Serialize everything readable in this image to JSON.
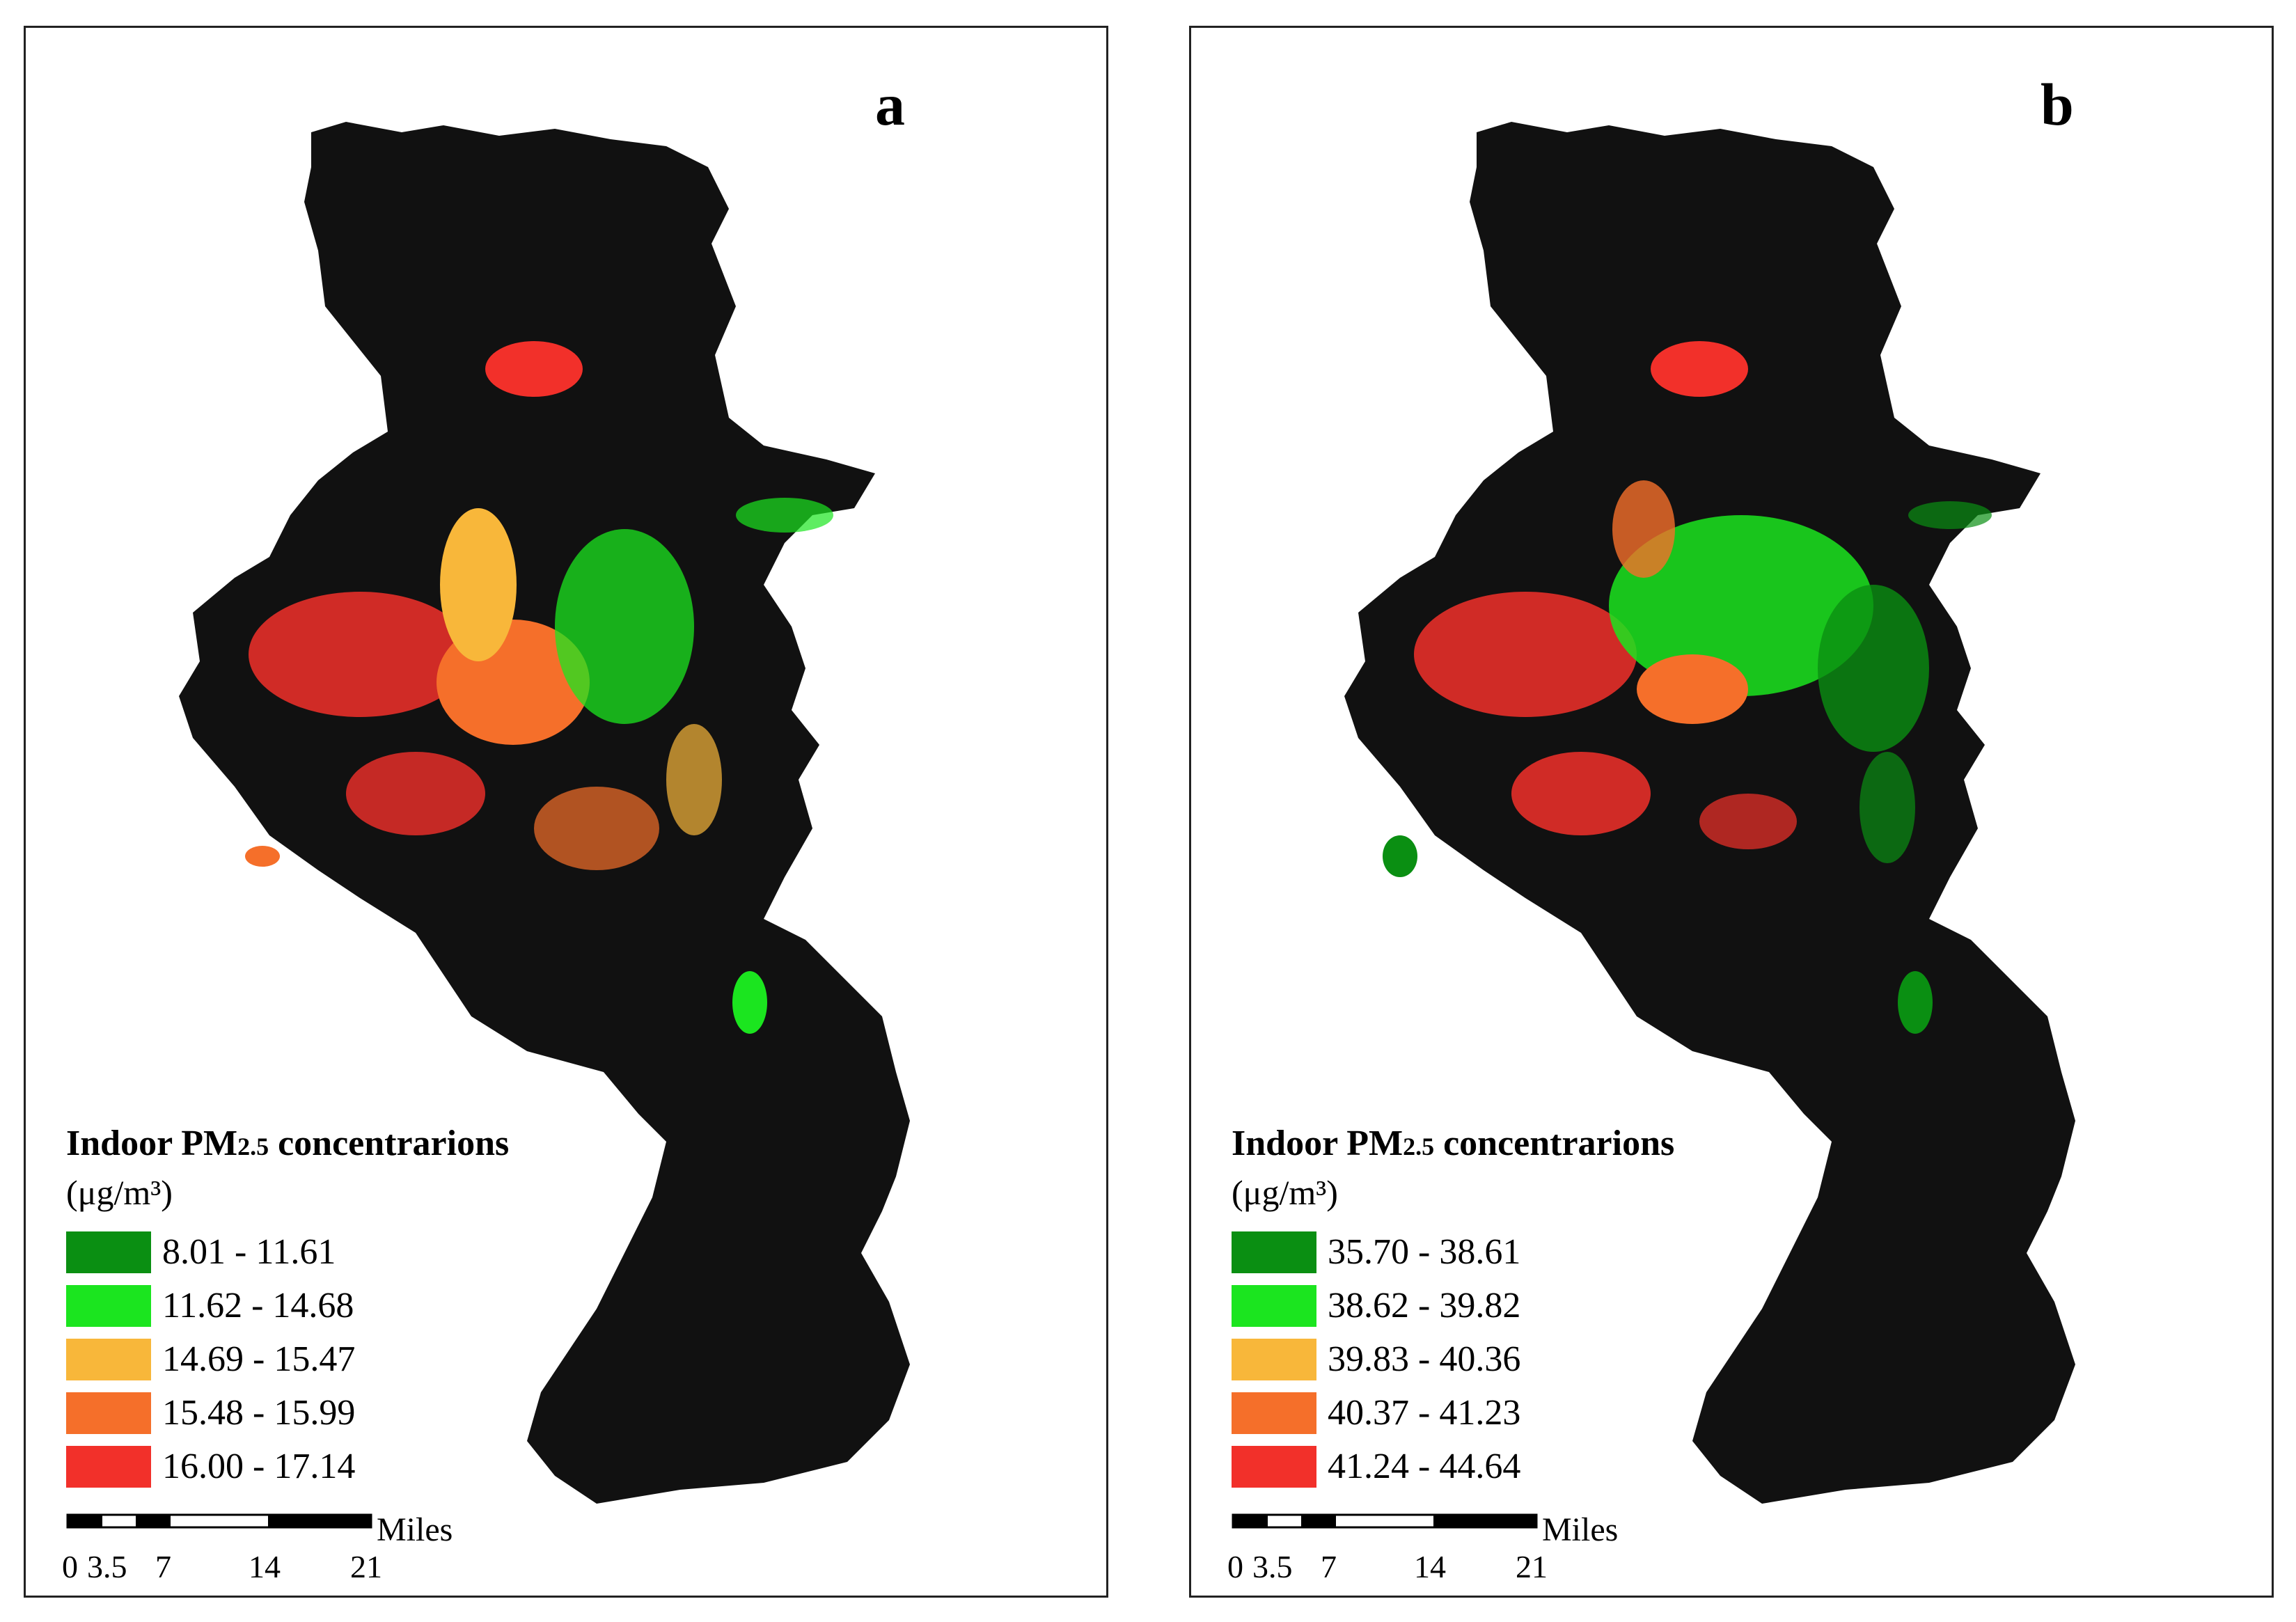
{
  "panels": [
    {
      "letter": "a",
      "legend": {
        "title_main": "Indoor PM",
        "title_sub": "2.5",
        "title_rest": " concentrarions",
        "units": "(μg/m³)",
        "classes": [
          {
            "label": "8.01 - 11.61",
            "color": "#0a8f12"
          },
          {
            "label": "11.62 - 14.68",
            "color": "#1be51f"
          },
          {
            "label": "14.69 - 15.47",
            "color": "#f8b73a"
          },
          {
            "label": "15.48 - 15.99",
            "color": "#f56f2a"
          },
          {
            "label": "16.00 - 17.14",
            "color": "#f2302a"
          }
        ]
      },
      "scalebar": {
        "unit": "Miles",
        "ticks": [
          "0",
          "3.5",
          "7",
          "14",
          "21"
        ]
      }
    },
    {
      "letter": "b",
      "legend": {
        "title_main": "Indoor PM",
        "title_sub": "2.5",
        "title_rest": " concentrarions",
        "units": "(μg/m³)",
        "classes": [
          {
            "label": "35.70 - 38.61",
            "color": "#0a8f12"
          },
          {
            "label": "38.62 - 39.82",
            "color": "#1be51f"
          },
          {
            "label": "39.83 - 40.36",
            "color": "#f8b73a"
          },
          {
            "label": "40.37 - 41.23",
            "color": "#f56f2a"
          },
          {
            "label": "41.24 - 44.64",
            "color": "#f2302a"
          }
        ]
      },
      "scalebar": {
        "unit": "Miles",
        "ticks": [
          "0",
          "3.5",
          "7",
          "14",
          "21"
        ]
      }
    }
  ],
  "map_colors": {
    "region_fill": "#111111",
    "frame": "#222222"
  }
}
